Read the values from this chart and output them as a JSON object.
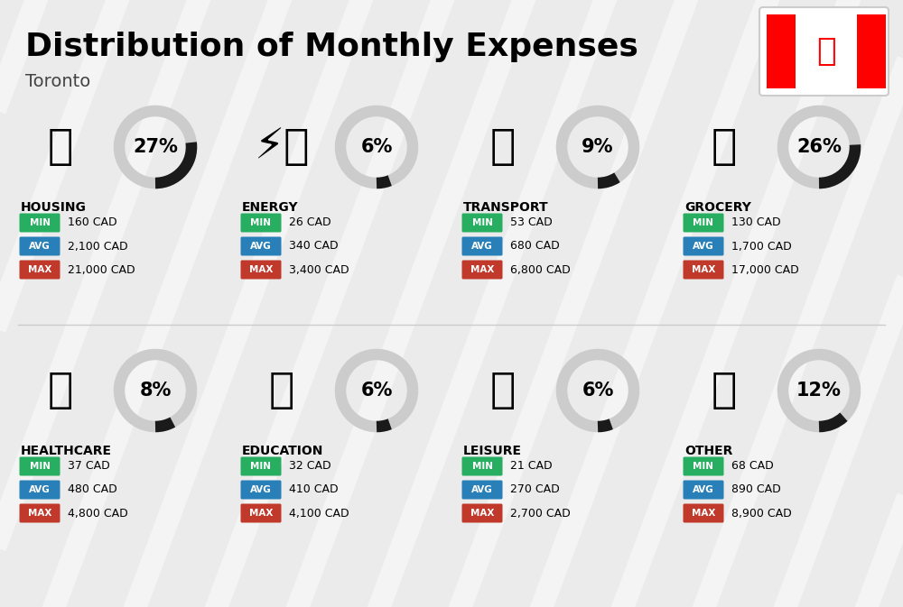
{
  "title": "Distribution of Monthly Expenses",
  "subtitle": "Toronto",
  "background_color": "#ebebeb",
  "categories": [
    {
      "name": "HOUSING",
      "percent": 27,
      "min_val": "160 CAD",
      "avg_val": "2,100 CAD",
      "max_val": "21,000 CAD",
      "col": 0,
      "row": 0
    },
    {
      "name": "ENERGY",
      "percent": 6,
      "min_val": "26 CAD",
      "avg_val": "340 CAD",
      "max_val": "3,400 CAD",
      "col": 1,
      "row": 0
    },
    {
      "name": "TRANSPORT",
      "percent": 9,
      "min_val": "53 CAD",
      "avg_val": "680 CAD",
      "max_val": "6,800 CAD",
      "col": 2,
      "row": 0
    },
    {
      "name": "GROCERY",
      "percent": 26,
      "min_val": "130 CAD",
      "avg_val": "1,700 CAD",
      "max_val": "17,000 CAD",
      "col": 3,
      "row": 0
    },
    {
      "name": "HEALTHCARE",
      "percent": 8,
      "min_val": "37 CAD",
      "avg_val": "480 CAD",
      "max_val": "4,800 CAD",
      "col": 0,
      "row": 1
    },
    {
      "name": "EDUCATION",
      "percent": 6,
      "min_val": "32 CAD",
      "avg_val": "410 CAD",
      "max_val": "4,100 CAD",
      "col": 1,
      "row": 1
    },
    {
      "name": "LEISURE",
      "percent": 6,
      "min_val": "21 CAD",
      "avg_val": "270 CAD",
      "max_val": "2,700 CAD",
      "col": 2,
      "row": 1
    },
    {
      "name": "OTHER",
      "percent": 12,
      "min_val": "68 CAD",
      "avg_val": "890 CAD",
      "max_val": "8,900 CAD",
      "col": 3,
      "row": 1
    }
  ],
  "min_color": "#27ae60",
  "avg_color": "#2980b9",
  "max_color": "#c0392b",
  "ring_dark": "#1a1a1a",
  "ring_light": "#cccccc",
  "title_fontsize": 26,
  "subtitle_fontsize": 14,
  "percent_fontsize": 15,
  "cat_fontsize": 10,
  "badge_fontsize": 7.5,
  "value_fontsize": 9
}
